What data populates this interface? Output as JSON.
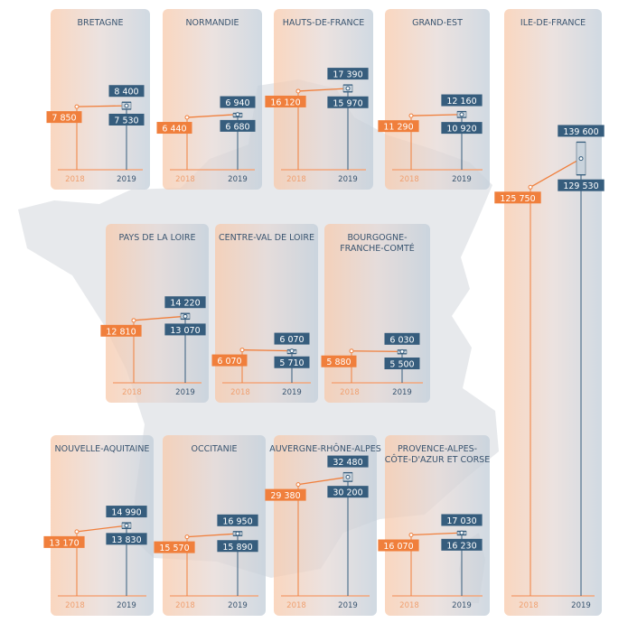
{
  "colors": {
    "orange": "#f07f3c",
    "blue": "#365d7d",
    "axis_label": "#f0a070",
    "title": "#3a5570"
  },
  "chart_data": [
    {
      "type": "line",
      "title": "BRETAGNE",
      "categories": [
        "2018",
        "2019"
      ],
      "values_2018": 7850,
      "values_2019_low": 7530,
      "values_2019_high": 8400
    },
    {
      "type": "line",
      "title": "NORMANDIE",
      "categories": [
        "2018",
        "2019"
      ],
      "values_2018": 6440,
      "values_2019_low": 6680,
      "values_2019_high": 6940
    },
    {
      "type": "line",
      "title": "HAUTS-DE-FRANCE",
      "categories": [
        "2018",
        "2019"
      ],
      "values_2018": 16120,
      "values_2019_low": 15970,
      "values_2019_high": 17390
    },
    {
      "type": "line",
      "title": "GRAND-EST",
      "categories": [
        "2018",
        "2019"
      ],
      "values_2018": 11290,
      "values_2019_low": 10920,
      "values_2019_high": 12160
    },
    {
      "type": "line",
      "title": "ILE-DE-FRANCE",
      "categories": [
        "2018",
        "2019"
      ],
      "values_2018": 125750,
      "values_2019_low": 129530,
      "values_2019_high": 139600
    },
    {
      "type": "line",
      "title": "PAYS DE LA LOIRE",
      "categories": [
        "2018",
        "2019"
      ],
      "values_2018": 12810,
      "values_2019_low": 13070,
      "values_2019_high": 14220
    },
    {
      "type": "line",
      "title": "CENTRE-VAL DE LOIRE",
      "categories": [
        "2018",
        "2019"
      ],
      "values_2018": 6070,
      "values_2019_low": 5710,
      "values_2019_high": 6070
    },
    {
      "type": "line",
      "title": "BOURGOGNE-\nFRANCHE-COMTÉ",
      "categories": [
        "2018",
        "2019"
      ],
      "values_2018": 5880,
      "values_2019_low": 5500,
      "values_2019_high": 6030
    },
    {
      "type": "line",
      "title": "NOUVELLE-AQUITAINE",
      "categories": [
        "2018",
        "2019"
      ],
      "values_2018": 13170,
      "values_2019_low": 13830,
      "values_2019_high": 14990
    },
    {
      "type": "line",
      "title": "OCCITANIE",
      "categories": [
        "2018",
        "2019"
      ],
      "values_2018": 15570,
      "values_2019_low": 15890,
      "values_2019_high": 16950
    },
    {
      "type": "line",
      "title": "AUVERGNE-RHÔNE-ALPES",
      "categories": [
        "2018",
        "2019"
      ],
      "values_2018": 29380,
      "values_2019_low": 30200,
      "values_2019_high": 32480
    },
    {
      "type": "line",
      "title": "PROVENCE-ALPES-\nCÔTE-D'AZUR ET CORSE",
      "categories": [
        "2018",
        "2019"
      ],
      "values_2018": 16070,
      "values_2019_low": 16230,
      "values_2019_high": 17030
    }
  ],
  "labels": {
    "BRETAGNE": {
      "v2018": "7 850",
      "low": "7 530",
      "high": "8 400"
    },
    "NORMANDIE": {
      "v2018": "6 440",
      "low": "6 680",
      "high": "6 940"
    },
    "HAUTS-DE-FRANCE": {
      "v2018": "16 120",
      "low": "15 970",
      "high": "17 390"
    },
    "GRAND-EST": {
      "v2018": "11 290",
      "low": "10 920",
      "high": "12 160"
    },
    "ILE-DE-FRANCE": {
      "v2018": "125 750",
      "low": "129 530",
      "high": "139 600"
    },
    "PAYS DE LA LOIRE": {
      "v2018": "12 810",
      "low": "13 070",
      "high": "14 220"
    },
    "CENTRE-VAL DE LOIRE": {
      "v2018": "6 070",
      "low": "5 710",
      "high": "6 070"
    },
    "BOURGOGNE-\nFRANCHE-COMTÉ": {
      "v2018": "5 880",
      "low": "5 500",
      "high": "6 030"
    },
    "NOUVELLE-AQUITAINE": {
      "v2018": "13 170",
      "low": "13 830",
      "high": "14 990"
    },
    "OCCITANIE": {
      "v2018": "15 570",
      "low": "15 890",
      "high": "16 950"
    },
    "AUVERGNE-RHÔNE-ALPES": {
      "v2018": "29 380",
      "low": "30 200",
      "high": "32 480"
    },
    "PROVENCE-ALPES-\nCÔTE-D'AZUR ET CORSE": {
      "v2018": "16 070",
      "low": "16 230",
      "high": "17 030"
    }
  }
}
